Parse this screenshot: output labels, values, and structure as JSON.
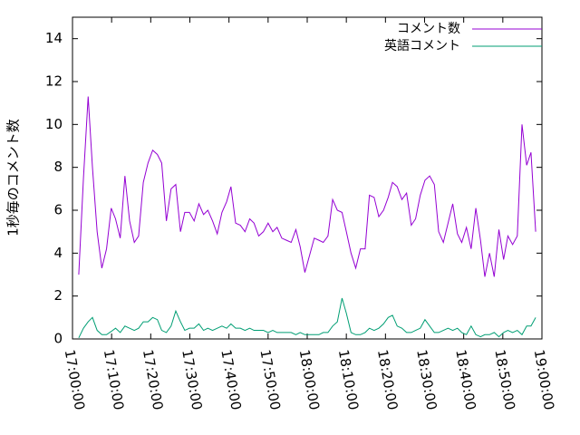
{
  "chart_data": {
    "type": "line",
    "y_label": "1秒毎のコメント数",
    "x": [
      1.6,
      2.8,
      4.0,
      5.1,
      6.3,
      7.5,
      8.7,
      9.9,
      11.0,
      12.2,
      13.4,
      14.6,
      15.8,
      16.9,
      18.1,
      19.3,
      20.5,
      21.7,
      22.8,
      24.0,
      25.2,
      26.4,
      27.6,
      28.7,
      29.9,
      31.1,
      32.3,
      33.5,
      34.6,
      35.8,
      37.0,
      38.2,
      39.4,
      40.5,
      41.7,
      42.9,
      44.1,
      45.3,
      46.4,
      47.6,
      48.8,
      50.0,
      51.2,
      52.3,
      53.5,
      54.7,
      55.9,
      57.1,
      58.2,
      59.4,
      60.6,
      61.8,
      63.0,
      64.1,
      65.3,
      66.5,
      67.7,
      68.9,
      70.0,
      71.2,
      72.4,
      73.6,
      74.8,
      75.9,
      77.1,
      78.3,
      79.5,
      80.7,
      81.8,
      83.0,
      84.2,
      85.4,
      86.6,
      87.7,
      88.9,
      90.1,
      91.3,
      92.5,
      93.6,
      94.8,
      96.0,
      97.2,
      98.4,
      99.5,
      100.7,
      101.9,
      103.1,
      104.3,
      105.4,
      106.6,
      107.8,
      109.0,
      110.2,
      111.3,
      112.5,
      113.7,
      114.9,
      116.1,
      117.2,
      118.4
    ],
    "series": [
      {
        "name": "コメント数",
        "color": "#9400d3",
        "values": [
          3.0,
          7.5,
          11.3,
          8.0,
          5.0,
          3.3,
          4.2,
          6.1,
          5.6,
          4.7,
          7.6,
          5.5,
          4.5,
          4.8,
          7.3,
          8.2,
          8.8,
          8.6,
          8.2,
          5.5,
          7.0,
          7.2,
          5.0,
          5.9,
          5.9,
          5.5,
          6.3,
          5.8,
          6.0,
          5.5,
          4.9,
          5.9,
          6.4,
          7.1,
          5.4,
          5.3,
          5.0,
          5.6,
          5.4,
          4.8,
          5.0,
          5.4,
          5.0,
          5.2,
          4.7,
          4.6,
          4.5,
          5.1,
          4.3,
          3.1,
          3.9,
          4.7,
          4.6,
          4.5,
          4.8,
          6.5,
          6.0,
          5.9,
          5.0,
          4.0,
          3.3,
          4.2,
          4.2,
          6.7,
          6.6,
          5.7,
          6.0,
          6.6,
          7.3,
          7.1,
          6.5,
          6.8,
          5.3,
          5.6,
          6.7,
          7.4,
          7.6,
          7.2,
          5.0,
          4.5,
          5.4,
          6.3,
          4.9,
          4.5,
          5.2,
          4.2,
          6.1,
          4.6,
          2.9,
          4.0,
          2.9,
          5.1,
          3.7,
          4.8,
          4.4,
          4.8,
          10.0,
          8.1,
          8.7,
          5.0
        ]
      },
      {
        "name": "英語コメント",
        "color": "#009e73",
        "values": [
          0.05,
          0.5,
          0.8,
          1.0,
          0.4,
          0.2,
          0.2,
          0.35,
          0.5,
          0.3,
          0.6,
          0.5,
          0.4,
          0.5,
          0.8,
          0.8,
          1.0,
          0.9,
          0.4,
          0.3,
          0.6,
          1.3,
          0.8,
          0.4,
          0.5,
          0.5,
          0.7,
          0.4,
          0.5,
          0.4,
          0.5,
          0.6,
          0.5,
          0.7,
          0.5,
          0.5,
          0.4,
          0.5,
          0.4,
          0.4,
          0.4,
          0.3,
          0.4,
          0.3,
          0.3,
          0.3,
          0.3,
          0.2,
          0.3,
          0.2,
          0.2,
          0.2,
          0.2,
          0.3,
          0.3,
          0.6,
          0.8,
          1.9,
          1.2,
          0.3,
          0.2,
          0.2,
          0.3,
          0.5,
          0.4,
          0.5,
          0.7,
          1.0,
          1.1,
          0.6,
          0.5,
          0.3,
          0.3,
          0.4,
          0.5,
          0.9,
          0.6,
          0.3,
          0.3,
          0.4,
          0.5,
          0.4,
          0.5,
          0.3,
          0.2,
          0.6,
          0.2,
          0.1,
          0.2,
          0.2,
          0.3,
          0.1,
          0.3,
          0.4,
          0.3,
          0.4,
          0.2,
          0.6,
          0.6,
          1.0
        ]
      }
    ],
    "xlim": [
      0,
      120
    ],
    "xticks": [
      {
        "value": 0,
        "label": "17:00:00"
      },
      {
        "value": 10,
        "label": "17:10:00"
      },
      {
        "value": 20,
        "label": "17:20:00"
      },
      {
        "value": 30,
        "label": "17:30:00"
      },
      {
        "value": 40,
        "label": "17:40:00"
      },
      {
        "value": 50,
        "label": "17:50:00"
      },
      {
        "value": 60,
        "label": "18:00:00"
      },
      {
        "value": 70,
        "label": "18:10:00"
      },
      {
        "value": 80,
        "label": "18:20:00"
      },
      {
        "value": 90,
        "label": "18:30:00"
      },
      {
        "value": 100,
        "label": "18:40:00"
      },
      {
        "value": 110,
        "label": "18:50:00"
      },
      {
        "value": 120,
        "label": "19:00:00"
      }
    ],
    "ylim": [
      0,
      15
    ],
    "yticks": [
      0,
      2,
      4,
      6,
      8,
      10,
      12,
      14
    ],
    "legend": "top-right"
  }
}
